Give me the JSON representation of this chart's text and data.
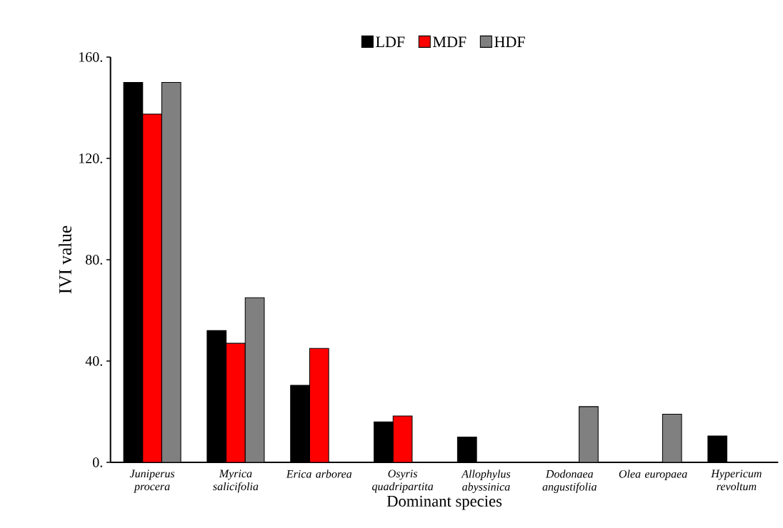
{
  "chart_data": {
    "type": "bar",
    "xlabel": "Dominant species",
    "ylabel": "IVI value",
    "categories": [
      "Juniperus procera",
      "Myrica salicifolia",
      "Erica arborea",
      "Osyris quadripartita",
      "Allophylus abyssinica",
      "Dodonaea angustifolia",
      "Olea europaea",
      "Hypericum revoltum"
    ],
    "series": [
      {
        "name": "LDF",
        "color": "#000000",
        "values": [
          150,
          52,
          30.4,
          16,
          10,
          null,
          null,
          10.4
        ]
      },
      {
        "name": "MDF",
        "color": "#ff0000",
        "values": [
          137.5,
          47,
          45,
          18.3,
          null,
          null,
          null,
          null
        ]
      },
      {
        "name": "HDF",
        "color": "#808080",
        "values": [
          150,
          65,
          null,
          null,
          null,
          22,
          19,
          null
        ]
      }
    ],
    "ylim": [
      0,
      160
    ],
    "yticks": [
      {
        "value": 0,
        "label": "0."
      },
      {
        "value": 40,
        "label": "40."
      },
      {
        "value": 80,
        "label": "80."
      },
      {
        "value": 120,
        "label": "120."
      },
      {
        "value": 160,
        "label": "160."
      }
    ],
    "legend": "top"
  }
}
